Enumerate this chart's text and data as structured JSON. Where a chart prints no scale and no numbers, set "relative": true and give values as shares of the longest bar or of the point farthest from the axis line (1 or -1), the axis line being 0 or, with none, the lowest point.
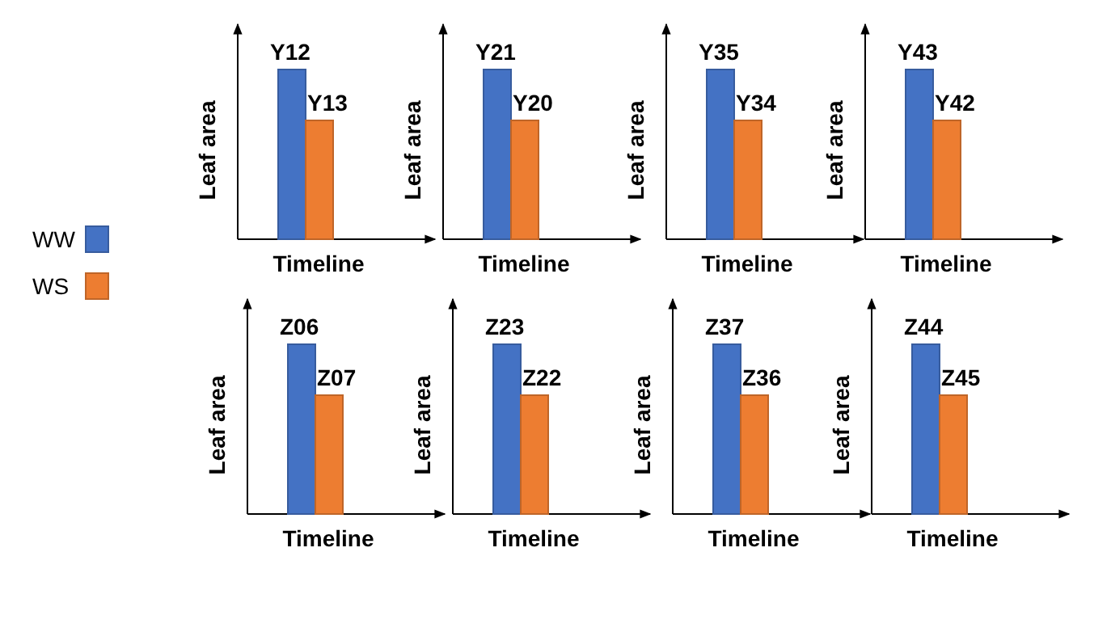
{
  "chart_data": [
    {
      "type": "bar",
      "relative": true,
      "categories": [
        null
      ],
      "xlabel": "Timeline",
      "ylabel": "Leaf area",
      "legend": "left",
      "annotations": [
        "Y12",
        "Y13"
      ],
      "series": [
        {
          "name": "WW",
          "color": "#4472c4",
          "values": [
            1
          ]
        },
        {
          "name": "WS",
          "color": "#ed7d31",
          "values": [
            0.7
          ]
        }
      ]
    },
    {
      "type": "bar",
      "relative": true,
      "categories": [
        null
      ],
      "xlabel": "Timeline",
      "ylabel": "Leaf area",
      "annotations": [
        "Y21",
        "Y20"
      ],
      "series": [
        {
          "color": "#4472c4",
          "values": [
            1
          ]
        },
        {
          "color": "#ed7d31",
          "values": [
            0.7
          ]
        }
      ]
    },
    {
      "type": "bar",
      "relative": true,
      "categories": [
        null
      ],
      "xlabel": "Timeline",
      "ylabel": "Leaf area",
      "annotations": [
        "Y35",
        "Y34"
      ],
      "series": [
        {
          "color": "#4472c4",
          "values": [
            1
          ]
        },
        {
          "color": "#ed7d31",
          "values": [
            0.7
          ]
        }
      ]
    },
    {
      "type": "bar",
      "relative": true,
      "categories": [
        null
      ],
      "xlabel": "Timeline",
      "ylabel": "Leaf area",
      "annotations": [
        "Y43",
        "Y42"
      ],
      "series": [
        {
          "color": "#4472c4",
          "values": [
            1
          ]
        },
        {
          "color": "#ed7d31",
          "values": [
            0.7
          ]
        }
      ]
    },
    {
      "type": "bar",
      "relative": true,
      "categories": [
        null
      ],
      "xlabel": "Timeline",
      "ylabel": "Leaf area",
      "annotations": [
        "Z06",
        "Z07"
      ],
      "series": [
        {
          "color": "#4472c4",
          "values": [
            1
          ]
        },
        {
          "color": "#ed7d31",
          "values": [
            0.7
          ]
        }
      ]
    },
    {
      "type": "bar",
      "relative": true,
      "categories": [
        null
      ],
      "xlabel": "Timeline",
      "ylabel": "Leaf area",
      "annotations": [
        "Z23",
        "Z22"
      ],
      "series": [
        {
          "color": "#4472c4",
          "values": [
            1
          ]
        },
        {
          "color": "#ed7d31",
          "values": [
            0.7
          ]
        }
      ]
    },
    {
      "type": "bar",
      "relative": true,
      "categories": [
        null
      ],
      "xlabel": "Timeline",
      "ylabel": "Leaf area",
      "annotations": [
        "Z37",
        "Z36"
      ],
      "series": [
        {
          "color": "#4472c4",
          "values": [
            1
          ]
        },
        {
          "color": "#ed7d31",
          "values": [
            0.7
          ]
        }
      ]
    },
    {
      "type": "bar",
      "relative": true,
      "categories": [
        null
      ],
      "xlabel": "Timeline",
      "ylabel": "Leaf area",
      "annotations": [
        "Z44",
        "Z45"
      ],
      "series": [
        {
          "color": "#4472c4",
          "values": [
            1
          ]
        },
        {
          "color": "#ed7d31",
          "values": [
            0.7
          ]
        }
      ]
    }
  ]
}
